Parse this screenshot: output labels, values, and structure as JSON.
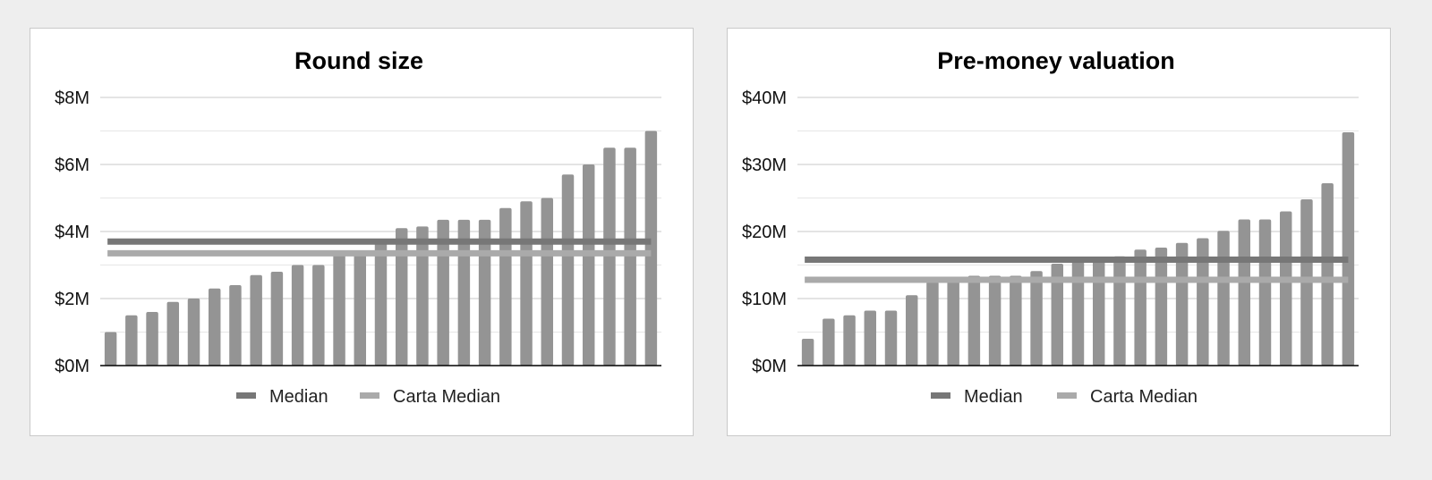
{
  "chart_data": [
    {
      "type": "bar",
      "title": "Round size",
      "ylim": [
        0,
        8
      ],
      "yunit": "$M",
      "yticks": [
        0,
        2,
        4,
        6,
        8
      ],
      "ytick_labels": [
        "$0M",
        "$2M",
        "$4M",
        "$6M",
        "$8M"
      ],
      "grid": true,
      "minor_gridlines": true,
      "legend_position": "bottom",
      "legend": [
        "Median",
        "Carta Median"
      ],
      "series": [
        {
          "values": [
            1.0,
            1.5,
            1.6,
            1.9,
            2.0,
            2.3,
            2.4,
            2.7,
            2.8,
            3.0,
            3.0,
            3.3,
            3.3,
            3.7,
            4.1,
            4.15,
            4.35,
            4.35,
            4.35,
            4.7,
            4.9,
            5.0,
            5.7,
            6.0,
            6.5,
            6.5,
            7.0
          ]
        }
      ],
      "reference_lines": [
        {
          "name": "Median",
          "value": 3.7,
          "color": "#777777"
        },
        {
          "name": "Carta Median",
          "value": 3.35,
          "color": "#aaaaaa"
        }
      ],
      "bar_color": "#949494"
    },
    {
      "type": "bar",
      "title": "Pre-money valuation",
      "ylim": [
        0,
        40
      ],
      "yunit": "$M",
      "yticks": [
        0,
        10,
        20,
        30,
        40
      ],
      "ytick_labels": [
        "$0M",
        "$10M",
        "$20M",
        "$30M",
        "$40M"
      ],
      "grid": true,
      "minor_gridlines": true,
      "legend_position": "bottom",
      "legend": [
        "Median",
        "Carta Median"
      ],
      "series": [
        {
          "values": [
            4.0,
            7.0,
            7.5,
            8.2,
            8.2,
            10.5,
            12.5,
            12.8,
            13.4,
            13.4,
            13.4,
            14.1,
            15.2,
            15.8,
            16.2,
            16.3,
            17.3,
            17.6,
            18.3,
            19.0,
            20.1,
            21.8,
            21.8,
            23.0,
            24.8,
            27.2,
            34.8
          ]
        }
      ],
      "reference_lines": [
        {
          "name": "Median",
          "value": 15.8,
          "color": "#777777"
        },
        {
          "name": "Carta Median",
          "value": 12.8,
          "color": "#aaaaaa"
        }
      ],
      "bar_color": "#949494"
    }
  ]
}
